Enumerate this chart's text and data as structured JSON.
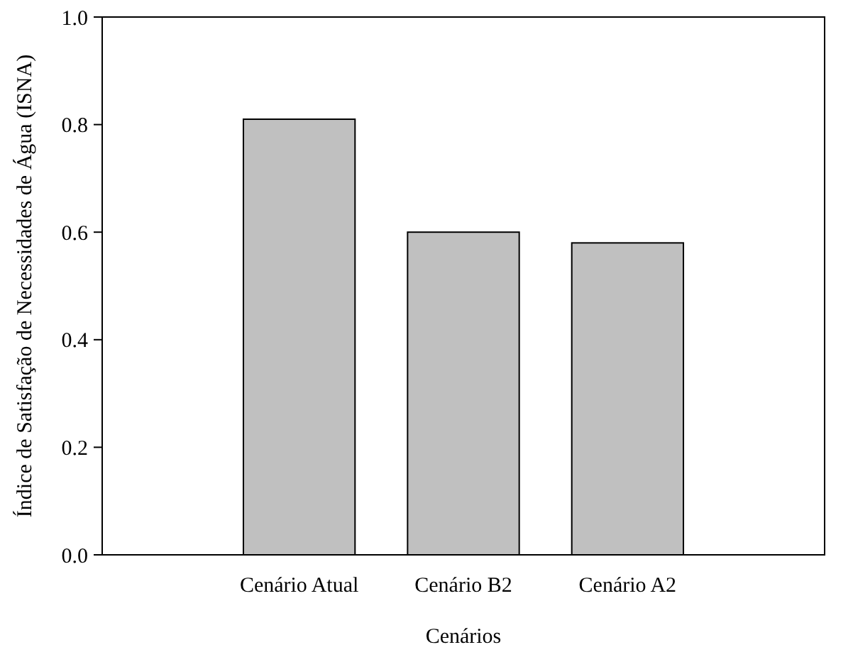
{
  "chart_data": {
    "type": "bar",
    "xlabel": "Cenários",
    "ylabel": "Índice de Satisfação de Necessidades de Água (ISNA)",
    "categories": [
      "Cenário Atual",
      "Cenário B2",
      "Cenário A2"
    ],
    "values": [
      0.81,
      0.6,
      0.58
    ],
    "color": "#c0c0c0",
    "ylim": [
      0,
      1
    ],
    "yticks": [
      {
        "value": 0,
        "label": "0.0"
      },
      {
        "value": 0.2,
        "label": "0.2"
      },
      {
        "value": 0.4,
        "label": "0.4"
      },
      {
        "value": 0.6,
        "label": "0.6"
      },
      {
        "value": 0.8,
        "label": "0.8"
      },
      {
        "value": 1,
        "label": "1.0"
      }
    ]
  }
}
